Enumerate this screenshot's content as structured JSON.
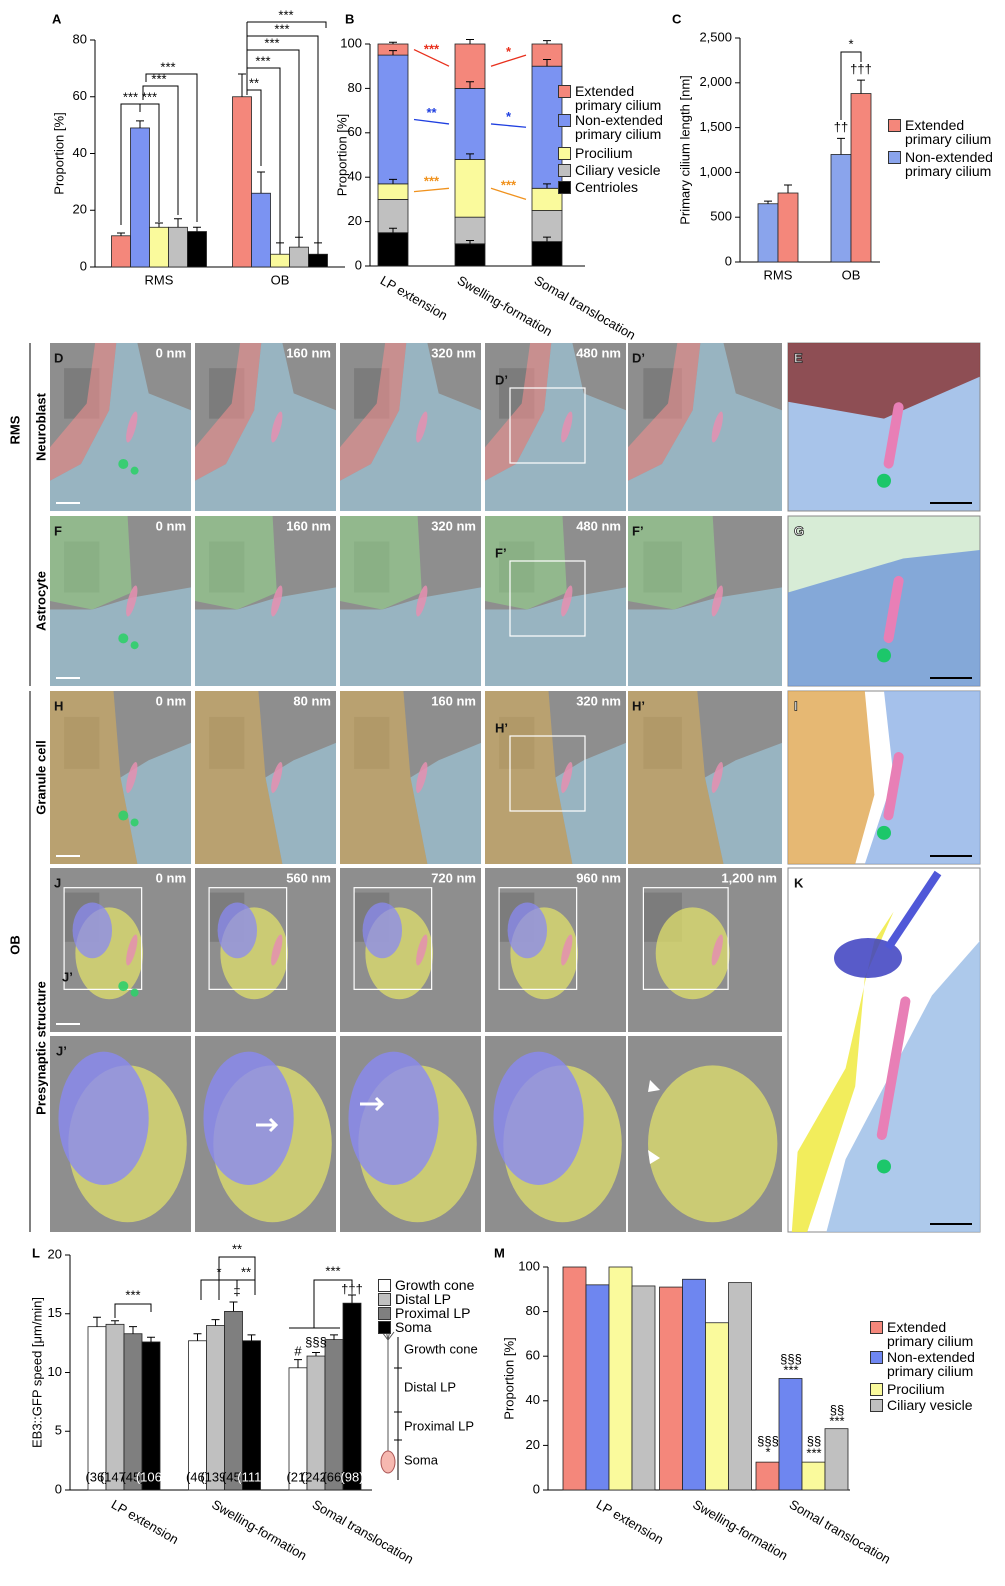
{
  "chart_data": [
    {
      "type": "bar",
      "panel_label": "A",
      "ylabel": "Proportion [%]",
      "categories": [
        "RMS",
        "OB"
      ],
      "ylim": [
        0,
        80
      ],
      "yticks": [
        0,
        20,
        40,
        60,
        80
      ],
      "series": [
        {
          "color": "#f4877b",
          "values": [
            11,
            60
          ],
          "errors": [
            1,
            8
          ]
        },
        {
          "color": "#7b93f2",
          "values": [
            49,
            26
          ],
          "errors": [
            2.5,
            7.5
          ]
        },
        {
          "color": "#fafa9c",
          "values": [
            14,
            4.5
          ],
          "errors": [
            1.5,
            4
          ]
        },
        {
          "color": "#c0c0c0",
          "values": [
            14,
            7
          ],
          "errors": [
            3,
            3.5
          ]
        },
        {
          "color": "#000000",
          "values": [
            12.5,
            4.5
          ],
          "errors": [
            1.5,
            4
          ]
        }
      ],
      "annotations": [
        "***",
        "***",
        "***",
        "***",
        "**",
        "***",
        "***",
        "***",
        "***"
      ]
    },
    {
      "type": "bar",
      "stacked": true,
      "panel_label": "B",
      "ylabel": "Proportion [%]",
      "categories": [
        "LP extension",
        "Swelling-formation",
        "Somal translocation"
      ],
      "ylim": [
        0,
        100
      ],
      "yticks": [
        0,
        20,
        40,
        60,
        80,
        100
      ],
      "series": [
        {
          "name": "Centrioles",
          "color": "#000000",
          "values": [
            15,
            10,
            11
          ],
          "errors": [
            2,
            1.5,
            2
          ]
        },
        {
          "name": "Ciliary vesicle",
          "color": "#c0c0c0",
          "values": [
            15,
            12,
            14
          ]
        },
        {
          "name": "Procilium",
          "color": "#fafa9c",
          "values": [
            7,
            26,
            10
          ],
          "errors": [
            2,
            2.5,
            2
          ]
        },
        {
          "name": "Non-extended primary cilium",
          "color": "#7b93f2",
          "values": [
            58,
            32,
            55
          ],
          "errors": [
            2,
            3,
            3
          ]
        },
        {
          "name": "Extended primary cilium",
          "color": "#f4877b",
          "values": [
            5,
            20,
            10
          ],
          "errors": [
            0.8,
            2,
            1.5
          ]
        }
      ],
      "annotations": [
        {
          "text": "***",
          "color": "#e8301c"
        },
        {
          "text": "*",
          "color": "#e8301c"
        },
        {
          "text": "**",
          "color": "#1f3fe0"
        },
        {
          "text": "*",
          "color": "#1f3fe0"
        },
        {
          "text": "***",
          "color": "#f0921e"
        },
        {
          "text": "***",
          "color": "#f0921e"
        }
      ]
    },
    {
      "type": "bar",
      "panel_label": "C",
      "ylabel": "Primary cilium length [nm]",
      "categories": [
        "RMS",
        "OB"
      ],
      "ylim": [
        0,
        2500
      ],
      "yticks": [
        0,
        500,
        {
          "value": 1000,
          "label": "1,000"
        },
        {
          "value": 1500,
          "label": "1,500"
        },
        {
          "value": 2000,
          "label": "2,000"
        },
        {
          "value": 2500,
          "label": "2,500"
        }
      ],
      "series": [
        {
          "name": "Non-extended primary cilium",
          "color": "#8aa4ec",
          "values": [
            650,
            1200
          ],
          "errors": [
            30,
            180
          ]
        },
        {
          "name": "Extended primary cilium",
          "color": "#f4877b",
          "values": [
            770,
            1880
          ],
          "errors": [
            90,
            150
          ]
        }
      ],
      "annotations": [
        "*",
        "††",
        "†††"
      ]
    },
    {
      "type": "bar",
      "panel_label": "L",
      "ylabel": "EB3::GFP speed [μm/min]",
      "categories": [
        "LP extension",
        "Swelling-formation",
        "Somal translocation"
      ],
      "ylim": [
        0,
        20
      ],
      "yticks": [
        0,
        5,
        10,
        15,
        20
      ],
      "series": [
        {
          "name": "Growth cone",
          "color": "#ffffff",
          "values": [
            13.9,
            12.7,
            10.4
          ],
          "errors": [
            0.8,
            0.6,
            0.7
          ],
          "n_labels": [
            "(36)",
            "(46)",
            "(21)"
          ]
        },
        {
          "name": "Distal LP",
          "color": "#c0c0c0",
          "values": [
            14.1,
            14.0,
            11.4
          ],
          "errors": [
            0.3,
            0.5,
            0.3
          ],
          "n_labels": [
            "(147)",
            "(139)",
            "(242)"
          ]
        },
        {
          "name": "Proximal LP",
          "color": "#7f7f7f",
          "values": [
            13.3,
            15.2,
            12.8
          ],
          "errors": [
            0.6,
            0.8,
            0.4
          ],
          "n_labels": [
            "(45)",
            "(45)",
            "(66)"
          ]
        },
        {
          "name": "Soma",
          "color": "#000000",
          "values": [
            12.6,
            12.7,
            15.9
          ],
          "errors": [
            0.4,
            0.5,
            0.7
          ],
          "n_labels": [
            "(106)",
            "(111)",
            "(98)"
          ]
        }
      ],
      "annotations": [
        "***",
        "**",
        "*",
        "**",
        "‡",
        "***",
        "#",
        "§§§",
        "†††"
      ],
      "diagram_labels": [
        "Growth cone",
        "Distal LP",
        "Proximal LP",
        "Soma"
      ]
    },
    {
      "type": "bar",
      "panel_label": "M",
      "ylabel": "Proportion [%]",
      "categories": [
        "LP extension",
        "Swelling-formation",
        "Somal translocation"
      ],
      "ylim": [
        0,
        100
      ],
      "yticks": [
        0,
        20,
        40,
        60,
        80,
        100
      ],
      "series": [
        {
          "name": "Extended primary cilium",
          "color": "#f4877b",
          "values": [
            100,
            91,
            12.5
          ]
        },
        {
          "name": "Non-extended primary cilium",
          "color": "#6e86f0",
          "values": [
            92,
            94.5,
            50
          ]
        },
        {
          "name": "Procilium",
          "color": "#fafa9c",
          "values": [
            100,
            75,
            12.5
          ]
        },
        {
          "name": "Ciliary vesicle",
          "color": "#c0c0c0",
          "values": [
            91.5,
            93,
            27.5
          ]
        }
      ],
      "annotations": [
        "§§§",
        "*",
        "§§§",
        "***",
        "§§",
        "***",
        "§§",
        "***"
      ]
    }
  ],
  "figure": {
    "region_labels": [
      "RMS",
      "OB"
    ],
    "row_labels": [
      "Neuroblast",
      "Astrocyte",
      "Granule cell",
      "Presynaptic structure"
    ],
    "rows": [
      {
        "label": "D",
        "depths": [
          "0 nm",
          "160 nm",
          "320 nm",
          "480 nm"
        ],
        "inset": "D’",
        "zoom": "D’",
        "render": "E"
      },
      {
        "label": "F",
        "depths": [
          "0 nm",
          "160 nm",
          "320 nm",
          "480 nm"
        ],
        "inset": "F’",
        "zoom": "F’",
        "render": "G"
      },
      {
        "label": "H",
        "depths": [
          "0 nm",
          "80 nm",
          "160 nm",
          "320 nm"
        ],
        "inset": "H’",
        "zoom": "H’",
        "render": "I"
      },
      {
        "label": "J",
        "depths": [
          "0 nm",
          "560 nm",
          "720 nm",
          "960 nm",
          "1,200 nm"
        ],
        "inset": "J’",
        "render": "K"
      }
    ],
    "zoom_row_label": "J’"
  }
}
